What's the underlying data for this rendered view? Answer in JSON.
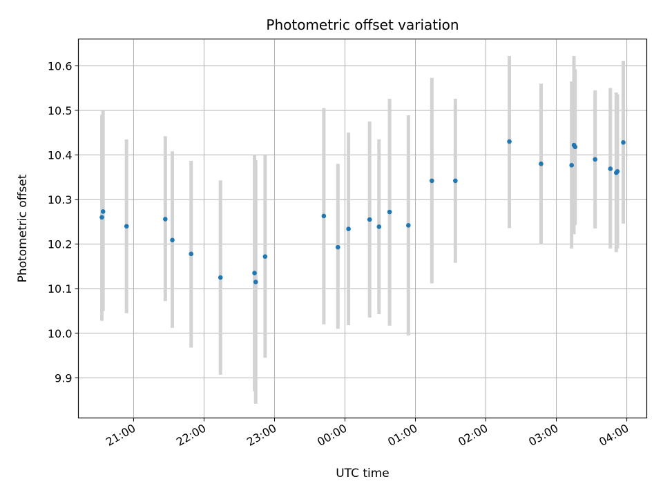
{
  "chart_data": {
    "type": "scatter",
    "title": "Photometric offset variation",
    "xlabel": "UTC time",
    "ylabel": "Photometric offset",
    "xlim": [
      "20:13",
      "04:17"
    ],
    "ylim": [
      9.81,
      10.66
    ],
    "grid": true,
    "x_ticks": [
      "21:00",
      "22:00",
      "23:00",
      "00:00",
      "01:00",
      "02:00",
      "03:00",
      "04:00"
    ],
    "y_ticks": [
      "9.9",
      "10.0",
      "10.1",
      "10.2",
      "10.3",
      "10.4",
      "10.5",
      "10.6"
    ],
    "colors": {
      "points": "#1f77b4",
      "errorbars": "#d3d3d3",
      "grid": "#b0b0b0"
    },
    "points": [
      {
        "x": "20:33",
        "y": 10.26,
        "ylow": 10.028,
        "yhigh": 10.49
      },
      {
        "x": "20:34",
        "y": 10.273,
        "ylow": 10.05,
        "yhigh": 10.5
      },
      {
        "x": "20:54",
        "y": 10.24,
        "ylow": 10.045,
        "yhigh": 10.435
      },
      {
        "x": "21:27",
        "y": 10.256,
        "ylow": 10.072,
        "yhigh": 10.442
      },
      {
        "x": "21:33",
        "y": 10.209,
        "ylow": 10.012,
        "yhigh": 10.408
      },
      {
        "x": "21:49",
        "y": 10.178,
        "ylow": 9.968,
        "yhigh": 10.387
      },
      {
        "x": "22:14",
        "y": 10.125,
        "ylow": 9.907,
        "yhigh": 10.343
      },
      {
        "x": "22:43",
        "y": 10.135,
        "ylow": 9.87,
        "yhigh": 10.4
      },
      {
        "x": "22:44",
        "y": 10.115,
        "ylow": 9.842,
        "yhigh": 10.388
      },
      {
        "x": "22:52",
        "y": 10.172,
        "ylow": 9.945,
        "yhigh": 10.399
      },
      {
        "x": "23:42",
        "y": 10.263,
        "ylow": 10.02,
        "yhigh": 10.505
      },
      {
        "x": "23:54",
        "y": 10.193,
        "ylow": 10.01,
        "yhigh": 10.38
      },
      {
        "x": "00:03",
        "y": 10.234,
        "ylow": 10.018,
        "yhigh": 10.45
      },
      {
        "x": "00:21",
        "y": 10.255,
        "ylow": 10.035,
        "yhigh": 10.475
      },
      {
        "x": "00:29",
        "y": 10.239,
        "ylow": 10.043,
        "yhigh": 10.435
      },
      {
        "x": "00:38",
        "y": 10.272,
        "ylow": 10.017,
        "yhigh": 10.526
      },
      {
        "x": "00:54",
        "y": 10.242,
        "ylow": 9.995,
        "yhigh": 10.489
      },
      {
        "x": "01:14",
        "y": 10.342,
        "ylow": 10.112,
        "yhigh": 10.573
      },
      {
        "x": "01:34",
        "y": 10.342,
        "ylow": 10.158,
        "yhigh": 10.526
      },
      {
        "x": "02:20",
        "y": 10.43,
        "ylow": 10.236,
        "yhigh": 10.622
      },
      {
        "x": "02:47",
        "y": 10.38,
        "ylow": 10.2,
        "yhigh": 10.56
      },
      {
        "x": "03:13",
        "y": 10.377,
        "ylow": 10.19,
        "yhigh": 10.565
      },
      {
        "x": "03:15",
        "y": 10.422,
        "ylow": 10.222,
        "yhigh": 10.622
      },
      {
        "x": "03:16",
        "y": 10.418,
        "ylow": 10.243,
        "yhigh": 10.592
      },
      {
        "x": "03:33",
        "y": 10.39,
        "ylow": 10.235,
        "yhigh": 10.545
      },
      {
        "x": "03:46",
        "y": 10.369,
        "ylow": 10.19,
        "yhigh": 10.55
      },
      {
        "x": "03:51",
        "y": 10.36,
        "ylow": 10.182,
        "yhigh": 10.54
      },
      {
        "x": "03:52",
        "y": 10.363,
        "ylow": 10.19,
        "yhigh": 10.536
      },
      {
        "x": "03:57",
        "y": 10.428,
        "ylow": 10.246,
        "yhigh": 10.611
      }
    ]
  }
}
